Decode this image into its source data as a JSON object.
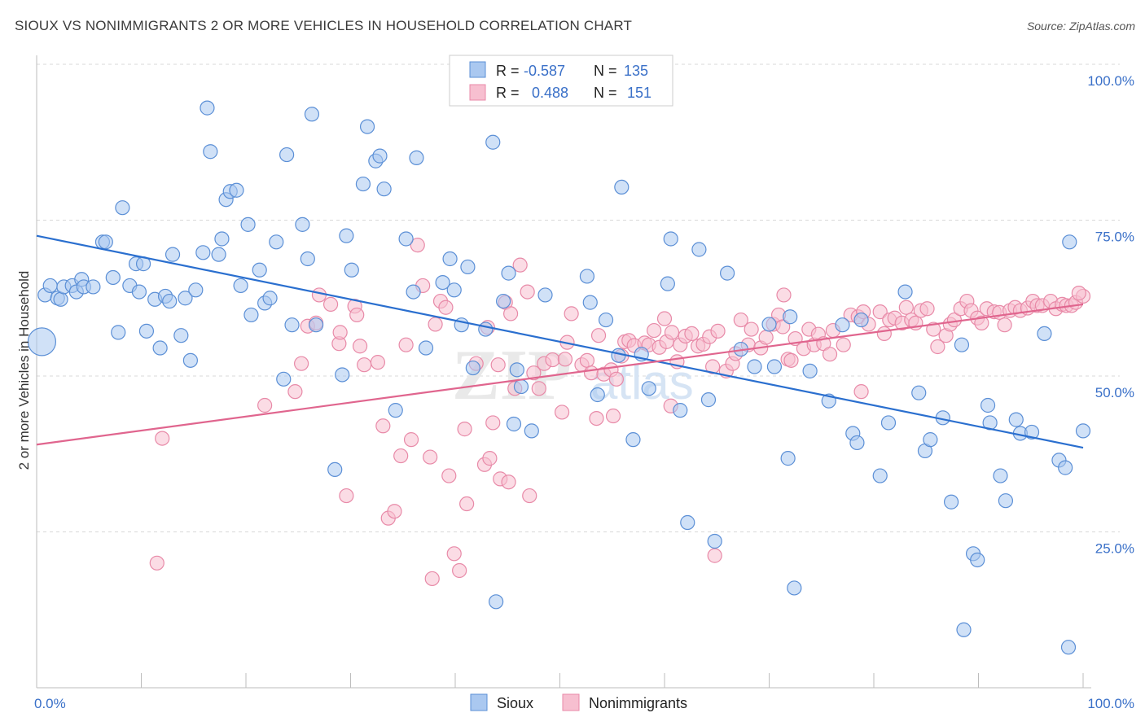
{
  "header": {
    "title": "SIOUX VS NONIMMIGRANTS 2 OR MORE VEHICLES IN HOUSEHOLD CORRELATION CHART",
    "source": "Source: ZipAtlas.com"
  },
  "colors": {
    "sioux_fill": "#aac8f0",
    "sioux_stroke": "#5b8fd6",
    "sioux_line": "#2a6fcf",
    "nonimm_fill": "#f7bfd0",
    "nonimm_stroke": "#e88aa8",
    "nonimm_line": "#e0658e",
    "grid": "#d8d8d8",
    "tick_text": "#3a70c8"
  },
  "legend": {
    "rows": [
      {
        "r_label": "R =",
        "r_value": "-0.587",
        "n_label": "N =",
        "n_value": "135"
      },
      {
        "r_label": "R =",
        "r_value": "0.488",
        "n_label": "N =",
        "n_value": "151"
      }
    ]
  },
  "watermark": {
    "part1": "ZIP",
    "part2": "atlas"
  },
  "chart_data": {
    "type": "scatter",
    "title": "SIOUX VS NONIMMIGRANTS 2 OR MORE VEHICLES IN HOUSEHOLD CORRELATION CHART",
    "xlabel": "",
    "ylabel": "2 or more Vehicles in Household",
    "xlim": [
      0,
      100
    ],
    "ylim": [
      0,
      100
    ],
    "x_tick_labels": [
      "0.0%",
      "100.0%"
    ],
    "y_tick_labels": [
      "25.0%",
      "50.0%",
      "75.0%",
      "100.0%"
    ],
    "y_ticks": [
      25,
      50,
      75,
      100
    ],
    "x_tick_marks": [
      0,
      10,
      20,
      30,
      40,
      50,
      60,
      70,
      80,
      90,
      100
    ],
    "grid": true,
    "legend_position": "top-center",
    "series": [
      {
        "name": "Sioux",
        "r": -0.587,
        "n": 135,
        "trend": {
          "x": [
            0,
            100
          ],
          "y": [
            72.5,
            38.5
          ]
        },
        "points": [
          [
            0.5,
            55.5
          ],
          [
            0.8,
            63
          ],
          [
            1.3,
            64.5
          ],
          [
            2,
            62.5
          ],
          [
            2.3,
            62.3
          ],
          [
            2.6,
            64.3
          ],
          [
            3.4,
            64.5
          ],
          [
            3.8,
            63.5
          ],
          [
            4.3,
            65.5
          ],
          [
            4.5,
            64.3
          ],
          [
            5.4,
            64.3
          ],
          [
            6.3,
            71.5
          ],
          [
            6.6,
            71.5
          ],
          [
            7.3,
            65.8
          ],
          [
            7.8,
            57
          ],
          [
            8.2,
            77
          ],
          [
            8.9,
            64.5
          ],
          [
            9.5,
            68
          ],
          [
            9.8,
            63.5
          ],
          [
            10.2,
            68
          ],
          [
            10.5,
            57.2
          ],
          [
            11.3,
            62.3
          ],
          [
            11.8,
            54.5
          ],
          [
            12.3,
            62.8
          ],
          [
            12.7,
            62
          ],
          [
            13,
            69.5
          ],
          [
            13.8,
            56.5
          ],
          [
            14.2,
            62.5
          ],
          [
            14.7,
            52.5
          ],
          [
            15.2,
            63.8
          ],
          [
            15.9,
            69.8
          ],
          [
            16.3,
            93
          ],
          [
            16.6,
            86
          ],
          [
            17.4,
            69.5
          ],
          [
            17.7,
            72
          ],
          [
            18.1,
            78.3
          ],
          [
            18.5,
            79.6
          ],
          [
            19.1,
            79.8
          ],
          [
            19.5,
            64.5
          ],
          [
            20.2,
            74.3
          ],
          [
            20.5,
            59.8
          ],
          [
            21.3,
            67
          ],
          [
            21.8,
            61.7
          ],
          [
            22.3,
            62.5
          ],
          [
            22.9,
            71.5
          ],
          [
            23.6,
            49.5
          ],
          [
            23.9,
            85.5
          ],
          [
            24.4,
            58.2
          ],
          [
            25.4,
            74.3
          ],
          [
            25.9,
            68.8
          ],
          [
            26.3,
            92
          ],
          [
            26.7,
            58.2
          ],
          [
            28.5,
            35
          ],
          [
            29.2,
            50.2
          ],
          [
            29.6,
            72.5
          ],
          [
            30.1,
            67
          ],
          [
            31.2,
            80.8
          ],
          [
            31.6,
            90
          ],
          [
            32.4,
            84.5
          ],
          [
            32.8,
            85.3
          ],
          [
            33.2,
            80
          ],
          [
            34.3,
            44.5
          ],
          [
            35.3,
            72
          ],
          [
            36,
            63.5
          ],
          [
            36.3,
            85
          ],
          [
            37.2,
            54.5
          ],
          [
            38.8,
            65
          ],
          [
            39.5,
            68.8
          ],
          [
            39.9,
            63.8
          ],
          [
            40.6,
            58.2
          ],
          [
            41.2,
            67.5
          ],
          [
            41.7,
            51.3
          ],
          [
            42.9,
            57.5
          ],
          [
            43.6,
            87.5
          ],
          [
            43.9,
            13.8
          ],
          [
            44.6,
            62
          ],
          [
            45.1,
            66.5
          ],
          [
            45.6,
            42.3
          ],
          [
            45.9,
            51
          ],
          [
            46.3,
            48.3
          ],
          [
            47.3,
            41.2
          ],
          [
            48.6,
            63
          ],
          [
            52.6,
            66
          ],
          [
            52.9,
            61.8
          ],
          [
            53.6,
            47
          ],
          [
            54.4,
            59
          ],
          [
            55.6,
            53.3
          ],
          [
            55.9,
            80.3
          ],
          [
            57,
            39.8
          ],
          [
            57.8,
            53.5
          ],
          [
            58.5,
            48
          ],
          [
            60.3,
            64.8
          ],
          [
            60.6,
            72
          ],
          [
            61.5,
            44.5
          ],
          [
            62.2,
            26.5
          ],
          [
            63.3,
            70.3
          ],
          [
            64.2,
            46.2
          ],
          [
            64.8,
            23.5
          ],
          [
            66,
            66.5
          ],
          [
            67.3,
            54.3
          ],
          [
            68.6,
            51.5
          ],
          [
            70,
            58.3
          ],
          [
            70.5,
            51.5
          ],
          [
            71.8,
            36.8
          ],
          [
            72,
            59.5
          ],
          [
            72.4,
            16
          ],
          [
            73.9,
            50.8
          ],
          [
            75.7,
            46
          ],
          [
            77,
            58.2
          ],
          [
            78,
            40.8
          ],
          [
            78.4,
            39.3
          ],
          [
            78.8,
            59
          ],
          [
            80.6,
            34
          ],
          [
            81.4,
            42.5
          ],
          [
            83,
            63.5
          ],
          [
            84.3,
            47.3
          ],
          [
            84.9,
            38
          ],
          [
            85.4,
            39.8
          ],
          [
            86.6,
            43.3
          ],
          [
            87.4,
            29.8
          ],
          [
            88.4,
            55
          ],
          [
            88.6,
            9.3
          ],
          [
            89.5,
            21.5
          ],
          [
            89.9,
            20.5
          ],
          [
            90.9,
            45.3
          ],
          [
            91.1,
            42.5
          ],
          [
            92.1,
            34
          ],
          [
            92.6,
            30
          ],
          [
            93.6,
            43
          ],
          [
            94,
            40.8
          ],
          [
            95.1,
            41
          ],
          [
            96.3,
            56.8
          ],
          [
            97.7,
            36.5
          ],
          [
            98.3,
            35.3
          ],
          [
            98.6,
            6.5
          ],
          [
            98.7,
            71.5
          ],
          [
            100,
            41.2
          ]
        ]
      },
      {
        "name": "Nonimmigrants",
        "r": 0.488,
        "n": 151,
        "trend": {
          "x": [
            0,
            100
          ],
          "y": [
            39,
            61.5
          ]
        },
        "points": [
          [
            12,
            40
          ],
          [
            11.5,
            20
          ],
          [
            21.8,
            45.3
          ],
          [
            24.7,
            47.5
          ],
          [
            25.3,
            52
          ],
          [
            25.9,
            58
          ],
          [
            26.7,
            58.5
          ],
          [
            27,
            63
          ],
          [
            28.1,
            61.5
          ],
          [
            28.9,
            55.2
          ],
          [
            29,
            57
          ],
          [
            29.6,
            30.8
          ],
          [
            30.4,
            61.2
          ],
          [
            30.6,
            59.8
          ],
          [
            30.9,
            54.8
          ],
          [
            31.3,
            51.8
          ],
          [
            32.6,
            52.2
          ],
          [
            33.1,
            42
          ],
          [
            33.6,
            27.2
          ],
          [
            34.2,
            28.3
          ],
          [
            34.8,
            37.2
          ],
          [
            35.3,
            55
          ],
          [
            35.8,
            39.8
          ],
          [
            36.4,
            71
          ],
          [
            36.9,
            64.5
          ],
          [
            37.6,
            37
          ],
          [
            37.8,
            17.5
          ],
          [
            38.1,
            58.3
          ],
          [
            38.6,
            62
          ],
          [
            39.1,
            61
          ],
          [
            39.4,
            34
          ],
          [
            39.9,
            21.5
          ],
          [
            40.4,
            18.8
          ],
          [
            40.9,
            41.5
          ],
          [
            41.1,
            29.5
          ],
          [
            42,
            52
          ],
          [
            42.8,
            35.8
          ],
          [
            43.1,
            57.8
          ],
          [
            43.3,
            36.8
          ],
          [
            43.6,
            42.5
          ],
          [
            44.1,
            51.8
          ],
          [
            44.3,
            33.5
          ],
          [
            44.8,
            61.8
          ],
          [
            45.1,
            33
          ],
          [
            45.3,
            60
          ],
          [
            45.7,
            48
          ],
          [
            46.2,
            67.8
          ],
          [
            46.9,
            63.5
          ],
          [
            47.1,
            30.8
          ],
          [
            47.5,
            50.5
          ],
          [
            48,
            48
          ],
          [
            48.5,
            52
          ],
          [
            49.3,
            52.6
          ],
          [
            50.2,
            44.2
          ],
          [
            50.5,
            52.7
          ],
          [
            50.7,
            55.4
          ],
          [
            51.1,
            60
          ],
          [
            52.1,
            51.8
          ],
          [
            52.6,
            52.5
          ],
          [
            53,
            50.5
          ],
          [
            53.5,
            43.2
          ],
          [
            53.7,
            56.5
          ],
          [
            54.2,
            50.3
          ],
          [
            54.9,
            51
          ],
          [
            55.1,
            43.6
          ],
          [
            55.4,
            49.5
          ],
          [
            55.9,
            53.2
          ],
          [
            56.2,
            55.5
          ],
          [
            56.6,
            55.7
          ],
          [
            57.1,
            54.9
          ],
          [
            58.1,
            55.3
          ],
          [
            58.5,
            55
          ],
          [
            59,
            57.3
          ],
          [
            59.5,
            54.6
          ],
          [
            60,
            59.2
          ],
          [
            60.2,
            55.5
          ],
          [
            60.7,
            57
          ],
          [
            61.2,
            52.3
          ],
          [
            61.5,
            55
          ],
          [
            62,
            56.4
          ],
          [
            62.6,
            56.8
          ],
          [
            63.2,
            54.8
          ],
          [
            63.7,
            55.1
          ],
          [
            64.3,
            56.3
          ],
          [
            64.6,
            51.5
          ],
          [
            65.1,
            57.2
          ],
          [
            65.9,
            50.8
          ],
          [
            66.5,
            52
          ],
          [
            66.8,
            53.6
          ],
          [
            67.3,
            59
          ],
          [
            68,
            55
          ],
          [
            68.3,
            57.5
          ],
          [
            69.2,
            54.5
          ],
          [
            69.7,
            56.2
          ],
          [
            70.4,
            58.3
          ],
          [
            70.9,
            59.8
          ],
          [
            71.3,
            57.9
          ],
          [
            71.8,
            52.7
          ],
          [
            72.1,
            52.5
          ],
          [
            72.5,
            56
          ],
          [
            73.3,
            54.4
          ],
          [
            73.8,
            57.5
          ],
          [
            74.3,
            55
          ],
          [
            74.7,
            56.7
          ],
          [
            75.2,
            55.2
          ],
          [
            75.8,
            53.5
          ],
          [
            76.1,
            57.3
          ],
          [
            77.1,
            55
          ],
          [
            77.8,
            59.8
          ],
          [
            78.5,
            59.5
          ],
          [
            79,
            60.3
          ],
          [
            79.5,
            58.3
          ],
          [
            80.6,
            60.3
          ],
          [
            81,
            56.8
          ],
          [
            81.5,
            59
          ],
          [
            82,
            59.3
          ],
          [
            82.7,
            58.5
          ],
          [
            83.1,
            61
          ],
          [
            83.6,
            59
          ],
          [
            84,
            58.5
          ],
          [
            84.5,
            60.5
          ],
          [
            85.1,
            60.8
          ],
          [
            85.7,
            57.5
          ],
          [
            86.1,
            54.7
          ],
          [
            86.9,
            56.5
          ],
          [
            87.3,
            58.3
          ],
          [
            87.7,
            59
          ],
          [
            88.3,
            60.8
          ],
          [
            88.9,
            62
          ],
          [
            89.3,
            60.5
          ],
          [
            89.9,
            59.3
          ],
          [
            90.3,
            58.5
          ],
          [
            90.8,
            60.8
          ],
          [
            91.5,
            60.3
          ],
          [
            92,
            60.2
          ],
          [
            92.5,
            58.2
          ],
          [
            93,
            60.5
          ],
          [
            93.5,
            61
          ],
          [
            94,
            60.5
          ],
          [
            94.7,
            60.9
          ],
          [
            95.2,
            62
          ],
          [
            95.6,
            61.3
          ],
          [
            96.1,
            61.3
          ],
          [
            96.9,
            62
          ],
          [
            97.4,
            60.8
          ],
          [
            98,
            61.5
          ],
          [
            98.4,
            61.3
          ],
          [
            98.9,
            61.3
          ],
          [
            99.3,
            61.8
          ],
          [
            100,
            62.8
          ],
          [
            99.6,
            63.3
          ],
          [
            64.8,
            21.2
          ],
          [
            60.6,
            45.2
          ],
          [
            71.4,
            63
          ],
          [
            78.8,
            47.5
          ]
        ]
      }
    ]
  },
  "axis": {
    "y_title": "2 or more Vehicles in Household",
    "x_tick_left": "0.0%",
    "x_tick_right": "100.0%"
  },
  "bottom_legend": {
    "items": [
      {
        "label": "Sioux"
      },
      {
        "label": "Nonimmigrants"
      }
    ]
  }
}
